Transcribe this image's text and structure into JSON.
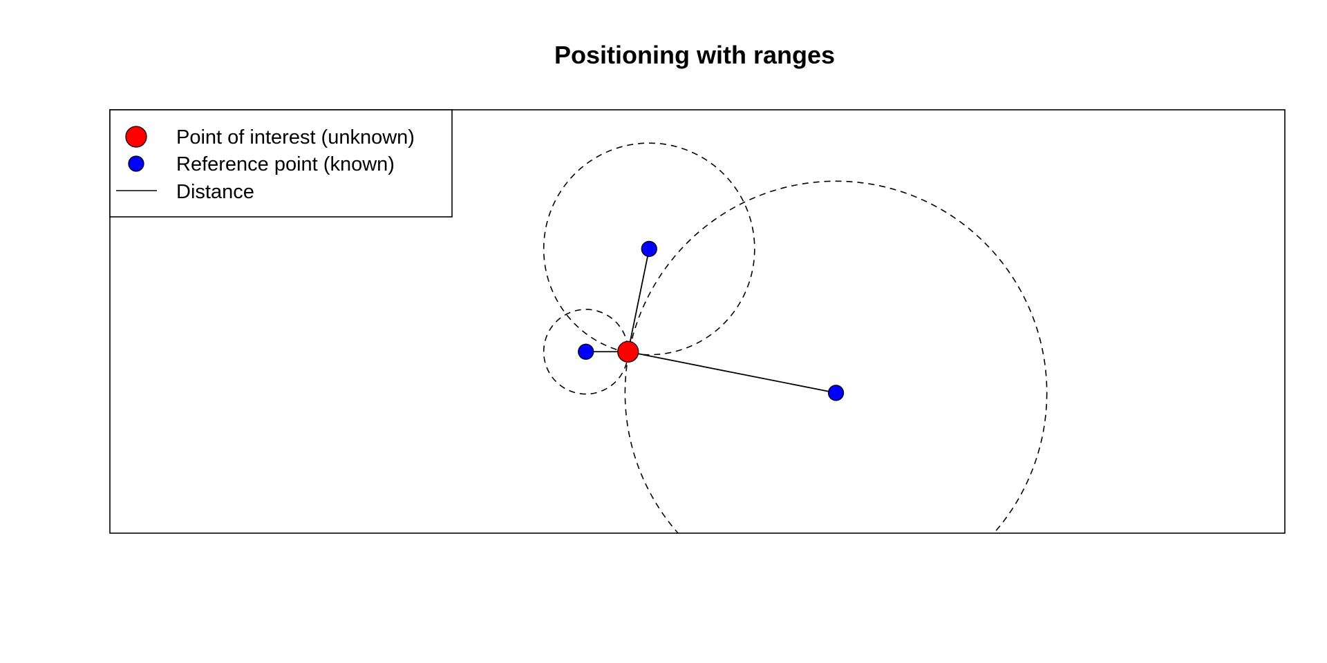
{
  "chart_data": {
    "type": "scatter",
    "title": "Positioning with ranges",
    "xlabel": "",
    "ylabel": "",
    "axes_visible": false,
    "grid": false,
    "xlim": [
      -7.5,
      12
    ],
    "ylim": [
      -3.5,
      3.5
    ],
    "point_of_interest": {
      "name": "Point of interest (unknown)",
      "x": 1.1,
      "y": -0.5,
      "color": "#ff0000"
    },
    "reference_points": {
      "name": "Reference point (known)",
      "color": "#0000ff",
      "points": [
        {
          "x": 1.45,
          "y": 1.2,
          "range": 1.75
        },
        {
          "x": 0.4,
          "y": -0.5,
          "range": 0.7
        },
        {
          "x": 4.55,
          "y": -1.18,
          "range": 3.5
        }
      ]
    },
    "distance_line": {
      "name": "Distance",
      "color": "#000000"
    },
    "legend": {
      "position": "top-left",
      "entries": [
        "Point of interest (unknown)",
        "Reference point (known)",
        "Distance"
      ]
    }
  }
}
